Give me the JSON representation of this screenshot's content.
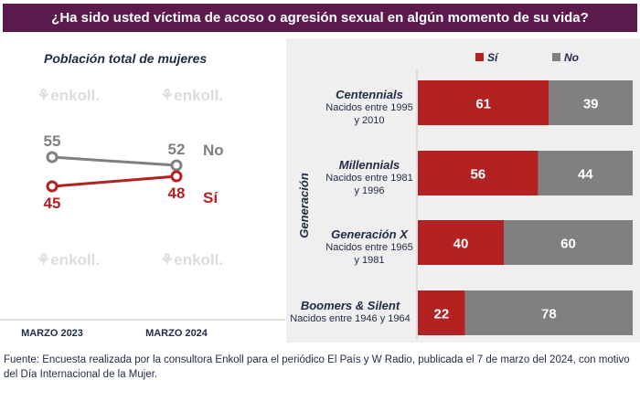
{
  "title": "¿Ha sido usted víctima de acoso o agresión sexual en algún momento de su vida?",
  "watermark": "enkoll.",
  "footer": "Fuente: Encuesta realizada por la consultora Enkoll para el periódico El País y W Radio, publicada el 7 de marzo del 2024, con motivo del Día Internacional de la Mujer.",
  "colors": {
    "si": "#b22222",
    "no": "#808080",
    "title_bg": "#5b1a4c"
  },
  "chart_data": [
    {
      "type": "line",
      "title": "Población total de mujeres",
      "categories": [
        "MARZO 2023",
        "MARZO 2024"
      ],
      "series": [
        {
          "name": "No",
          "values": [
            55,
            52
          ]
        },
        {
          "name": "Sí",
          "values": [
            45,
            48
          ]
        }
      ]
    },
    {
      "type": "bar",
      "stacked": true,
      "orientation": "horizontal",
      "ylabel": "Generación",
      "legend": "top",
      "categories": [
        {
          "name": "Centennials",
          "sub": "Nacidos entre 1995 y 2010"
        },
        {
          "name": "Millennials",
          "sub": "Nacidos entre 1981 y 1996"
        },
        {
          "name": "Generación X",
          "sub": "Nacidos entre 1965 y 1981"
        },
        {
          "name": "Boomers & Silent",
          "sub": "Nacidos entre 1946 y 1964"
        }
      ],
      "series": [
        {
          "name": "Sí",
          "values": [
            61,
            56,
            40,
            22
          ]
        },
        {
          "name": "No",
          "values": [
            39,
            44,
            60,
            78
          ]
        }
      ]
    }
  ]
}
